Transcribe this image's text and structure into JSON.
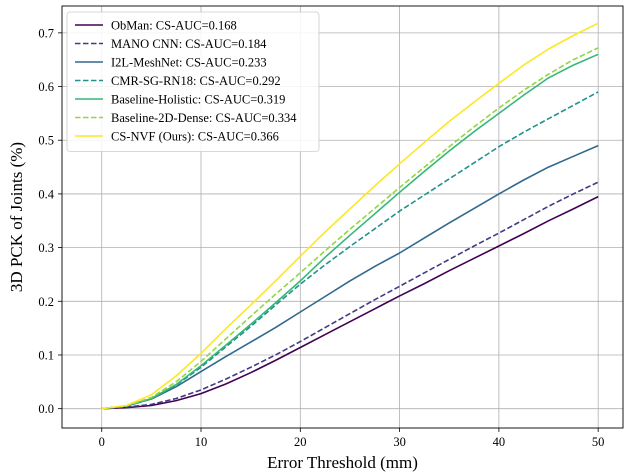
{
  "chart_data": {
    "type": "line",
    "xlabel": "Error Threshold (mm)",
    "ylabel": "3D PCK of Joints (%)",
    "xlim": [
      -4,
      52.5
    ],
    "ylim": [
      -0.036,
      0.75
    ],
    "xticks": [
      "0",
      "10",
      "20",
      "30",
      "40",
      "50"
    ],
    "yticks": [
      "0.0",
      "0.1",
      "0.2",
      "0.3",
      "0.4",
      "0.5",
      "0.6",
      "0.7"
    ],
    "grid": true,
    "legend_position": "top-left",
    "x": [
      0,
      2.5,
      5,
      7.5,
      10,
      12.5,
      15,
      17.5,
      20,
      22.5,
      25,
      27.5,
      30,
      32.5,
      35,
      37.5,
      40,
      42.5,
      45,
      47.5,
      50
    ],
    "series": [
      {
        "name": "ObMan: CS-AUC=0.168",
        "color": "#440154",
        "dash": "solid",
        "values": [
          0.0,
          0.002,
          0.006,
          0.015,
          0.028,
          0.046,
          0.067,
          0.09,
          0.114,
          0.138,
          0.162,
          0.186,
          0.21,
          0.233,
          0.257,
          0.28,
          0.303,
          0.326,
          0.35,
          0.372,
          0.395
        ]
      },
      {
        "name": "MANO CNN: CS-AUC=0.184",
        "color": "#443983",
        "dash": "dashed",
        "values": [
          0.0,
          0.003,
          0.008,
          0.019,
          0.035,
          0.055,
          0.077,
          0.1,
          0.125,
          0.151,
          0.177,
          0.203,
          0.228,
          0.253,
          0.278,
          0.303,
          0.327,
          0.352,
          0.377,
          0.4,
          0.422
        ]
      },
      {
        "name": "I2L-MeshNet: CS-AUC=0.233",
        "color": "#31688e",
        "dash": "solid",
        "values": [
          0.0,
          0.005,
          0.018,
          0.041,
          0.069,
          0.097,
          0.124,
          0.151,
          0.18,
          0.209,
          0.238,
          0.265,
          0.29,
          0.318,
          0.346,
          0.373,
          0.4,
          0.426,
          0.45,
          0.47,
          0.49
        ]
      },
      {
        "name": "CMR-SG-RN18: CS-AUC=0.292",
        "color": "#21918c",
        "dash": "dashed",
        "values": [
          0.0,
          0.005,
          0.019,
          0.044,
          0.077,
          0.115,
          0.153,
          0.193,
          0.232,
          0.268,
          0.302,
          0.335,
          0.368,
          0.398,
          0.428,
          0.458,
          0.488,
          0.515,
          0.54,
          0.565,
          0.59
        ]
      },
      {
        "name": "Baseline-Holistic: CS-AUC=0.319",
        "color": "#35b779",
        "dash": "solid",
        "values": [
          0.0,
          0.005,
          0.019,
          0.045,
          0.08,
          0.118,
          0.157,
          0.197,
          0.238,
          0.282,
          0.323,
          0.363,
          0.403,
          0.442,
          0.48,
          0.516,
          0.55,
          0.584,
          0.616,
          0.64,
          0.66
        ]
      },
      {
        "name": "Baseline-2D-Dense: CS-AUC=0.334",
        "color": "#90d743",
        "dash": "dashed",
        "values": [
          0.0,
          0.005,
          0.021,
          0.05,
          0.088,
          0.13,
          0.172,
          0.213,
          0.253,
          0.294,
          0.334,
          0.373,
          0.412,
          0.45,
          0.488,
          0.525,
          0.56,
          0.593,
          0.623,
          0.65,
          0.672
        ]
      },
      {
        "name": "CS-NVF (Ours): CS-AUC=0.366",
        "color": "#fde725",
        "dash": "solid",
        "values": [
          0.0,
          0.006,
          0.026,
          0.061,
          0.103,
          0.149,
          0.193,
          0.238,
          0.284,
          0.329,
          0.372,
          0.415,
          0.456,
          0.496,
          0.535,
          0.571,
          0.606,
          0.64,
          0.67,
          0.695,
          0.718
        ]
      }
    ]
  }
}
